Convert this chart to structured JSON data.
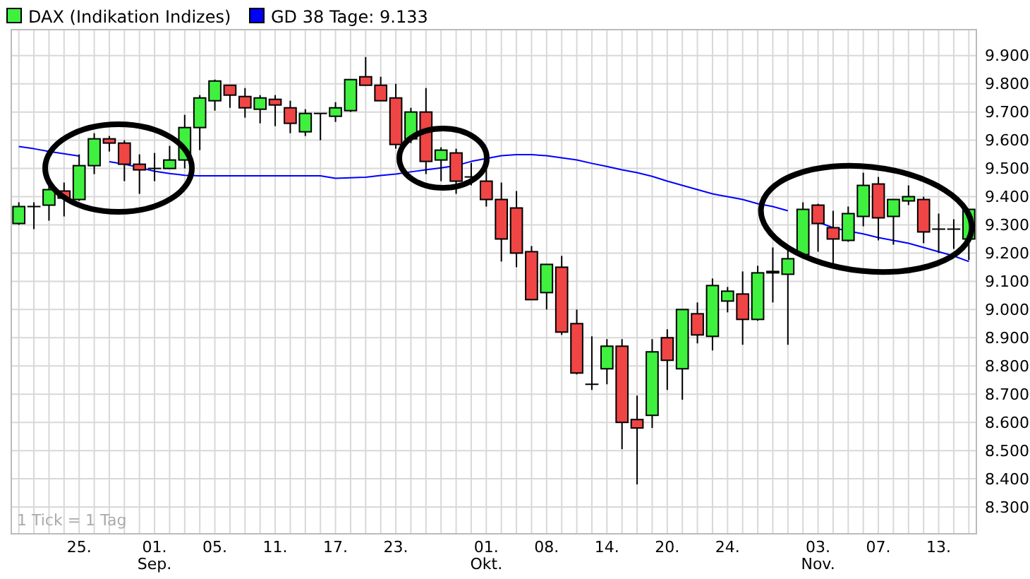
{
  "chart_data": {
    "type": "candlestick",
    "categories": [
      null,
      null,
      null,
      null,
      "25.",
      null,
      null,
      null,
      null,
      "01.\nSep.",
      null,
      null,
      null,
      "05.",
      null,
      null,
      null,
      "11.",
      null,
      null,
      null,
      "17.",
      null,
      null,
      null,
      "23.",
      null,
      null,
      null,
      null,
      null,
      "01.\nOkt.",
      null,
      null,
      null,
      "08.",
      null,
      null,
      null,
      "14.",
      null,
      null,
      null,
      "20.",
      null,
      null,
      null,
      "24.",
      null,
      null,
      null,
      null,
      null,
      "03.\nNov.",
      null,
      null,
      null,
      "07.",
      null,
      null,
      null,
      "13.",
      null,
      null
    ],
    "series": [
      {
        "name": "DAX (Indikation Indizes)",
        "color": "#3ff03f",
        "ohlc": [
          [
            9305,
            9380,
            9300,
            9365
          ],
          [
            9365,
            9380,
            9285,
            9365
          ],
          [
            9370,
            9450,
            9315,
            9425
          ],
          [
            9420,
            9450,
            9330,
            9395
          ],
          [
            9390,
            9550,
            9385,
            9510
          ],
          [
            9510,
            9625,
            9480,
            9605
          ],
          [
            9605,
            9615,
            9560,
            9590
          ],
          [
            9590,
            9600,
            9455,
            9515
          ],
          [
            9515,
            9550,
            9410,
            9495
          ],
          [
            9500,
            9555,
            9455,
            9500
          ],
          [
            9500,
            9580,
            9500,
            9530
          ],
          [
            9530,
            9690,
            9500,
            9645
          ],
          [
            9645,
            9760,
            9565,
            9750
          ],
          [
            9740,
            9815,
            9705,
            9810
          ],
          [
            9795,
            9795,
            9715,
            9760
          ],
          [
            9755,
            9785,
            9680,
            9715
          ],
          [
            9710,
            9760,
            9660,
            9750
          ],
          [
            9745,
            9760,
            9650,
            9725
          ],
          [
            9715,
            9740,
            9625,
            9660
          ],
          [
            9630,
            9710,
            9615,
            9695
          ],
          [
            9695,
            9695,
            9600,
            9695
          ],
          [
            9685,
            9735,
            9665,
            9715
          ],
          [
            9705,
            9815,
            9700,
            9815
          ],
          [
            9825,
            9895,
            9795,
            9795
          ],
          [
            9795,
            9825,
            9740,
            9740
          ],
          [
            9750,
            9800,
            9570,
            9585
          ],
          [
            9605,
            9715,
            9590,
            9700
          ],
          [
            9700,
            9785,
            9480,
            9525
          ],
          [
            9530,
            9575,
            9455,
            9565
          ],
          [
            9555,
            9570,
            9410,
            9455
          ],
          [
            9470,
            9520,
            9440,
            9470
          ],
          [
            9455,
            9510,
            9365,
            9390
          ],
          [
            9390,
            9450,
            9170,
            9250
          ],
          [
            9360,
            9420,
            9150,
            9200
          ],
          [
            9205,
            9225,
            9035,
            9035
          ],
          [
            9060,
            9160,
            9000,
            9160
          ],
          [
            9150,
            9190,
            8910,
            8920
          ],
          [
            8950,
            9000,
            8770,
            8775
          ],
          [
            8735,
            8905,
            8715,
            8735
          ],
          [
            8790,
            8895,
            8735,
            8870
          ],
          [
            8870,
            8895,
            8505,
            8600
          ],
          [
            8610,
            8695,
            8380,
            8580
          ],
          [
            8625,
            8895,
            8580,
            8850
          ],
          [
            8900,
            8930,
            8715,
            8820
          ],
          [
            8790,
            9000,
            8680,
            9000
          ],
          [
            8985,
            9025,
            8880,
            8910
          ],
          [
            8905,
            9110,
            8855,
            9085
          ],
          [
            9030,
            9080,
            8990,
            9065
          ],
          [
            9055,
            9135,
            8875,
            8965
          ],
          [
            8965,
            9155,
            8960,
            9130
          ],
          [
            9135,
            9220,
            9025,
            9130
          ],
          [
            9125,
            9220,
            8875,
            9180
          ],
          [
            9195,
            9380,
            9190,
            9355
          ],
          [
            9370,
            9375,
            9205,
            9305
          ],
          [
            9290,
            9350,
            9150,
            9250
          ],
          [
            9245,
            9365,
            9240,
            9340
          ],
          [
            9330,
            9485,
            9295,
            9440
          ],
          [
            9445,
            9470,
            9245,
            9325
          ],
          [
            9330,
            9390,
            9230,
            9390
          ],
          [
            9385,
            9440,
            9370,
            9400
          ],
          [
            9390,
            9400,
            9235,
            9275
          ],
          [
            9285,
            9340,
            9200,
            9285
          ],
          [
            9285,
            9320,
            9215,
            9285
          ],
          [
            9250,
            9355,
            9175,
            9355
          ]
        ],
        "colors": [
          "#3ff03f",
          "#000000",
          "#3ff03f",
          "#f04545",
          "#3ff03f",
          "#3ff03f",
          "#f04545",
          "#f04545",
          "#f04545",
          "#000000",
          "#3ff03f",
          "#3ff03f",
          "#3ff03f",
          "#3ff03f",
          "#f04545",
          "#f04545",
          "#3ff03f",
          "#f04545",
          "#f04545",
          "#3ff03f",
          "#000000",
          "#3ff03f",
          "#3ff03f",
          "#f04545",
          "#f04545",
          "#f04545",
          "#3ff03f",
          "#f04545",
          "#3ff03f",
          "#f04545",
          "#000000",
          "#f04545",
          "#f04545",
          "#f04545",
          "#f04545",
          "#3ff03f",
          "#f04545",
          "#f04545",
          "#000000",
          "#3ff03f",
          "#f04545",
          "#f04545",
          "#3ff03f",
          "#f04545",
          "#3ff03f",
          "#f04545",
          "#3ff03f",
          "#3ff03f",
          "#f04545",
          "#3ff03f",
          "#f04545",
          "#3ff03f",
          "#3ff03f",
          "#f04545",
          "#f04545",
          "#3ff03f",
          "#3ff03f",
          "#f04545",
          "#3ff03f",
          "#3ff03f",
          "#f04545",
          "#000000",
          "#000000",
          "#3ff03f"
        ]
      },
      {
        "type": "line",
        "name": "GD 38 Tage: 9.133",
        "color": "#0000ff",
        "values": [
          9578,
          9570,
          9560,
          9552,
          9544,
          null,
          9524,
          9515,
          9503,
          9490,
          9482,
          9476,
          9474,
          9474,
          9474,
          9474,
          9474,
          9474,
          9474,
          9474,
          9474,
          9465,
          9467,
          9469,
          9475,
          9480,
          9488,
          9495,
          9502,
          9510,
          9525,
          9535,
          9545,
          9549,
          9549,
          9545,
          9538,
          9530,
          9518,
          9507,
          9495,
          9485,
          9472,
          9455,
          9440,
          9425,
          9410,
          9400,
          9390,
          9375,
          9365,
          9350,
          null,
          9310,
          9290,
          9278,
          9268,
          9255,
          9245,
          9235,
          9220,
          9205,
          9190,
          9170
        ]
      }
    ],
    "ylim": [
      8205,
      9992
    ],
    "yticks": [
      {
        "value": 8300,
        "label": "8.300"
      },
      {
        "value": 8400,
        "label": "8.400"
      },
      {
        "value": 8500,
        "label": "8.500"
      },
      {
        "value": 8600,
        "label": "8.600"
      },
      {
        "value": 8700,
        "label": "8.700"
      },
      {
        "value": 8800,
        "label": "8.800"
      },
      {
        "value": 8900,
        "label": "8.900"
      },
      {
        "value": 9000,
        "label": "9.000"
      },
      {
        "value": 9100,
        "label": "9.100"
      },
      {
        "value": 9200,
        "label": "9.200"
      },
      {
        "value": 9300,
        "label": "9.300"
      },
      {
        "value": 9400,
        "label": "9.400"
      },
      {
        "value": 9500,
        "label": "9.500"
      },
      {
        "value": 9600,
        "label": "9.600"
      },
      {
        "value": 9700,
        "label": "9.700"
      },
      {
        "value": 9800,
        "label": "9.800"
      },
      {
        "value": 9900,
        "label": "9.900"
      }
    ],
    "grid": true,
    "legend": "top left",
    "line_style": "solid",
    "marker": "none",
    "annotations": [
      "1 Tick = 1 Tag"
    ]
  }
}
